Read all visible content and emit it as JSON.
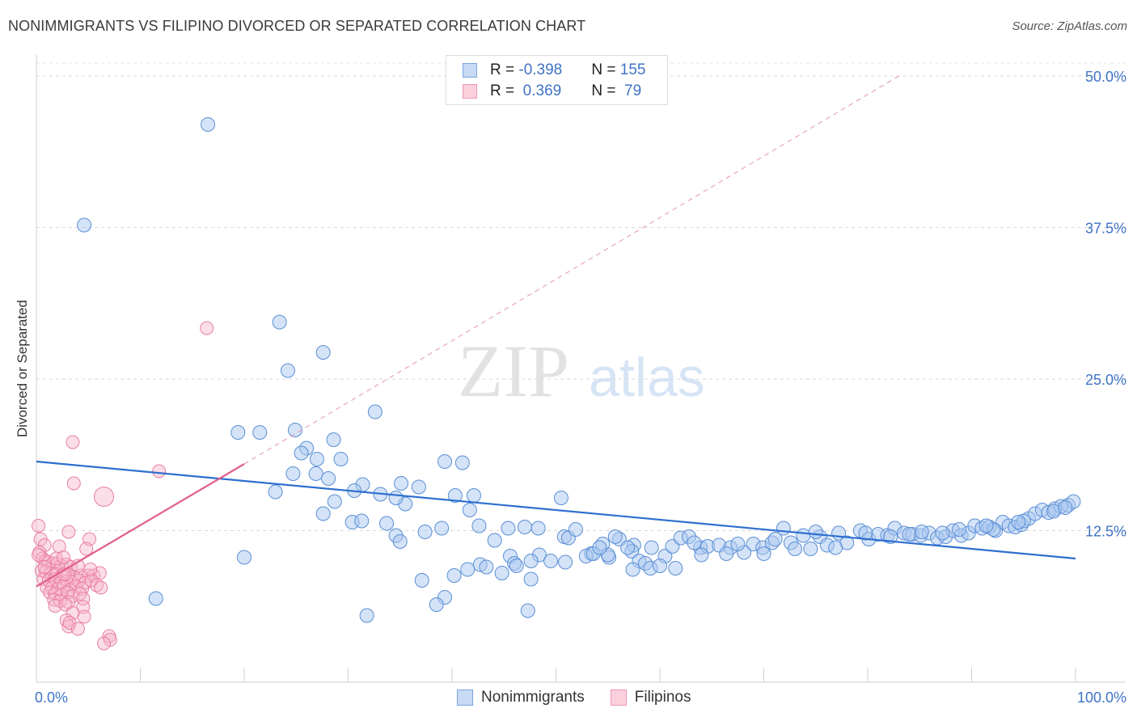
{
  "header": {
    "title": "NONIMMIGRANTS VS FILIPINO DIVORCED OR SEPARATED CORRELATION CHART",
    "source": "Source: ZipAtlas.com"
  },
  "watermark": {
    "zip": "ZIP",
    "atlas": "atlas"
  },
  "legend": {
    "rows": [
      {
        "r_label": "R = ",
        "r_value": "-0.398",
        "n_label": "N = ",
        "n_value": "155",
        "color": "#a9c8f0"
      },
      {
        "r_label": "R = ",
        "r_value": " 0.369",
        "n_label": "N = ",
        "n_value": " 79",
        "color": "#f7b6c9"
      }
    ]
  },
  "chart_data": {
    "type": "scatter",
    "title": "NONIMMIGRANTS VS FILIPINO DIVORCED OR SEPARATED CORRELATION CHART",
    "xlabel": "",
    "ylabel": "Divorced or Separated",
    "xlim": [
      0,
      100
    ],
    "ylim": [
      0,
      50
    ],
    "x_tick_labels": [
      "0.0%",
      "100.0%"
    ],
    "y_tick_labels": [
      "12.5%",
      "25.0%",
      "37.5%",
      "50.0%"
    ],
    "y_ticks": [
      12.5,
      25.0,
      37.5,
      50.0
    ],
    "grid": "horizontal dashed",
    "legend_position": "bottom-center",
    "series": [
      {
        "name": "Nonimmigrants",
        "color": "#a9c8f0",
        "stroke": "#5b8fd6",
        "trend": {
          "x": [
            0,
            100
          ],
          "y": [
            18.2,
            10.2
          ],
          "color": "#2e6fd0"
        },
        "points": [
          [
            16.5,
            46
          ],
          [
            4.6,
            37.7
          ],
          [
            23.4,
            29.7
          ],
          [
            27.6,
            27.2
          ],
          [
            24.2,
            25.7
          ],
          [
            32.6,
            22.3
          ],
          [
            19.4,
            20.6
          ],
          [
            21.5,
            20.6
          ],
          [
            24.9,
            20.8
          ],
          [
            28.6,
            20.0
          ],
          [
            26.0,
            19.3
          ],
          [
            25.5,
            18.9
          ],
          [
            27.0,
            18.4
          ],
          [
            29.3,
            18.4
          ],
          [
            39.3,
            18.2
          ],
          [
            41.0,
            18.1
          ],
          [
            26.9,
            17.2
          ],
          [
            24.7,
            17.2
          ],
          [
            28.1,
            16.8
          ],
          [
            31.4,
            16.3
          ],
          [
            35.1,
            16.4
          ],
          [
            23.0,
            15.7
          ],
          [
            30.6,
            15.8
          ],
          [
            33.1,
            15.5
          ],
          [
            36.8,
            16.1
          ],
          [
            40.3,
            15.4
          ],
          [
            42.1,
            15.4
          ],
          [
            35.5,
            14.7
          ],
          [
            34.6,
            15.2
          ],
          [
            28.7,
            14.9
          ],
          [
            50.5,
            15.2
          ],
          [
            41.7,
            14.2
          ],
          [
            27.6,
            13.9
          ],
          [
            30.4,
            13.2
          ],
          [
            31.3,
            13.3
          ],
          [
            33.7,
            13.1
          ],
          [
            39.0,
            12.7
          ],
          [
            45.4,
            12.7
          ],
          [
            47.0,
            12.8
          ],
          [
            42.6,
            12.9
          ],
          [
            34.6,
            12.1
          ],
          [
            37.4,
            12.4
          ],
          [
            35.0,
            11.6
          ],
          [
            44.1,
            11.7
          ],
          [
            50.8,
            12.0
          ],
          [
            51.2,
            11.9
          ],
          [
            54.5,
            11.4
          ],
          [
            56.1,
            11.8
          ],
          [
            57.5,
            11.3
          ],
          [
            59.2,
            11.1
          ],
          [
            45.6,
            10.4
          ],
          [
            48.4,
            10.5
          ],
          [
            53.4,
            10.6
          ],
          [
            55.1,
            10.3
          ],
          [
            57.3,
            10.8
          ],
          [
            60.5,
            10.4
          ],
          [
            61.2,
            11.2
          ],
          [
            62.0,
            11.9
          ],
          [
            62.8,
            12.0
          ],
          [
            63.9,
            11.1
          ],
          [
            64.6,
            11.2
          ],
          [
            65.7,
            11.3
          ],
          [
            66.8,
            11.1
          ],
          [
            68.1,
            10.7
          ],
          [
            69.0,
            11.4
          ],
          [
            69.9,
            11.1
          ],
          [
            70.8,
            11.5
          ],
          [
            71.9,
            12.7
          ],
          [
            72.6,
            11.5
          ],
          [
            73.8,
            12.1
          ],
          [
            74.5,
            11.0
          ],
          [
            75.4,
            12.0
          ],
          [
            76.1,
            11.3
          ],
          [
            77.2,
            12.3
          ],
          [
            78.0,
            11.5
          ],
          [
            79.3,
            12.5
          ],
          [
            80.1,
            11.8
          ],
          [
            81.0,
            12.2
          ],
          [
            81.9,
            12.1
          ],
          [
            82.6,
            12.7
          ],
          [
            83.5,
            12.3
          ],
          [
            84.3,
            12.2
          ],
          [
            85.1,
            12.1
          ],
          [
            85.9,
            12.3
          ],
          [
            86.7,
            11.9
          ],
          [
            87.5,
            12.0
          ],
          [
            88.2,
            12.5
          ],
          [
            89.0,
            12.1
          ],
          [
            89.7,
            12.3
          ],
          [
            90.3,
            12.9
          ],
          [
            91.0,
            12.7
          ],
          [
            91.7,
            12.8
          ],
          [
            92.3,
            12.5
          ],
          [
            93.0,
            13.2
          ],
          [
            93.6,
            12.9
          ],
          [
            94.2,
            12.8
          ],
          [
            94.8,
            13.0
          ],
          [
            95.5,
            13.5
          ],
          [
            96.1,
            13.9
          ],
          [
            96.8,
            14.2
          ],
          [
            97.4,
            14.0
          ],
          [
            98.0,
            14.3
          ],
          [
            98.6,
            14.5
          ],
          [
            99.3,
            14.6
          ],
          [
            99.8,
            14.9
          ],
          [
            20.0,
            10.3
          ],
          [
            46.0,
            9.8
          ],
          [
            42.7,
            9.7
          ],
          [
            43.3,
            9.5
          ],
          [
            41.5,
            9.3
          ],
          [
            46.2,
            9.6
          ],
          [
            47.6,
            10.0
          ],
          [
            49.5,
            10.0
          ],
          [
            50.9,
            9.9
          ],
          [
            52.9,
            10.4
          ],
          [
            53.6,
            10.6
          ],
          [
            55.0,
            10.5
          ],
          [
            58.0,
            10.0
          ],
          [
            58.6,
            9.8
          ],
          [
            59.1,
            9.4
          ],
          [
            60.0,
            9.6
          ],
          [
            61.5,
            9.4
          ],
          [
            44.8,
            9.0
          ],
          [
            47.6,
            8.5
          ],
          [
            40.2,
            8.8
          ],
          [
            37.1,
            8.4
          ],
          [
            39.3,
            7.0
          ],
          [
            31.8,
            5.5
          ],
          [
            38.5,
            6.4
          ],
          [
            47.3,
            5.9
          ],
          [
            11.5,
            6.9
          ],
          [
            57.4,
            9.3
          ],
          [
            54.2,
            11.1
          ],
          [
            56.9,
            11.1
          ],
          [
            64.0,
            10.5
          ],
          [
            66.4,
            10.6
          ],
          [
            70.0,
            10.6
          ],
          [
            73.0,
            11.0
          ],
          [
            76.9,
            11.1
          ],
          [
            82.2,
            12.0
          ],
          [
            85.2,
            12.4
          ],
          [
            88.8,
            12.6
          ],
          [
            92.1,
            12.6
          ],
          [
            95.0,
            13.3
          ],
          [
            97.9,
            14.1
          ],
          [
            99.0,
            14.4
          ],
          [
            48.3,
            12.7
          ],
          [
            51.9,
            12.6
          ],
          [
            55.7,
            12.0
          ],
          [
            63.3,
            11.5
          ],
          [
            67.5,
            11.4
          ],
          [
            71.1,
            11.8
          ],
          [
            75.0,
            12.4
          ],
          [
            79.8,
            12.3
          ],
          [
            84.0,
            12.2
          ],
          [
            87.2,
            12.3
          ],
          [
            91.4,
            12.9
          ],
          [
            94.5,
            13.2
          ]
        ]
      },
      {
        "name": "Filipinos",
        "color": "#f7b6c9",
        "stroke": "#e97fa2",
        "trend": {
          "x": [
            0,
            20
          ],
          "y": [
            7.9,
            18.0
          ],
          "color": "#e0608a",
          "extended_dashed_to": [
            83,
            50
          ]
        },
        "points": [
          [
            16.4,
            29.2
          ],
          [
            3.5,
            19.8
          ],
          [
            11.8,
            17.4
          ],
          [
            3.6,
            16.4
          ],
          [
            6.5,
            15.3
          ],
          [
            0.2,
            12.9
          ],
          [
            3.1,
            12.4
          ],
          [
            0.4,
            11.8
          ],
          [
            5.1,
            11.8
          ],
          [
            0.8,
            11.3
          ],
          [
            2.2,
            11.2
          ],
          [
            4.8,
            11.0
          ],
          [
            0.3,
            10.7
          ],
          [
            0.6,
            10.2
          ],
          [
            0.9,
            10.0
          ],
          [
            1.2,
            9.9
          ],
          [
            1.6,
            9.8
          ],
          [
            2.0,
            9.8
          ],
          [
            2.4,
            9.6
          ],
          [
            2.9,
            9.7
          ],
          [
            3.3,
            9.5
          ],
          [
            0.5,
            9.2
          ],
          [
            0.9,
            9.1
          ],
          [
            1.4,
            9.0
          ],
          [
            1.9,
            8.9
          ],
          [
            2.5,
            8.8
          ],
          [
            3.0,
            8.9
          ],
          [
            3.6,
            8.7
          ],
          [
            4.3,
            8.8
          ],
          [
            5.0,
            8.8
          ],
          [
            5.5,
            8.8
          ],
          [
            6.1,
            9.0
          ],
          [
            0.7,
            8.5
          ],
          [
            1.2,
            8.4
          ],
          [
            1.8,
            8.5
          ],
          [
            2.3,
            8.2
          ],
          [
            2.9,
            8.3
          ],
          [
            3.4,
            8.3
          ],
          [
            4.1,
            8.4
          ],
          [
            4.7,
            8.2
          ],
          [
            5.3,
            8.4
          ],
          [
            5.8,
            8.0
          ],
          [
            1.0,
            7.8
          ],
          [
            1.5,
            7.8
          ],
          [
            2.1,
            7.7
          ],
          [
            2.6,
            7.9
          ],
          [
            3.2,
            7.6
          ],
          [
            3.8,
            7.9
          ],
          [
            4.4,
            7.7
          ],
          [
            1.3,
            7.4
          ],
          [
            1.8,
            7.3
          ],
          [
            2.4,
            7.2
          ],
          [
            3.0,
            7.4
          ],
          [
            3.5,
            7.1
          ],
          [
            4.2,
            7.3
          ],
          [
            1.7,
            6.8
          ],
          [
            2.3,
            6.7
          ],
          [
            3.1,
            6.6
          ],
          [
            4.5,
            6.9
          ],
          [
            1.8,
            6.3
          ],
          [
            2.8,
            6.4
          ],
          [
            4.5,
            6.2
          ],
          [
            3.5,
            5.7
          ],
          [
            4.6,
            5.4
          ],
          [
            2.9,
            5.1
          ],
          [
            3.1,
            4.6
          ],
          [
            3.2,
            4.9
          ],
          [
            4.0,
            4.4
          ],
          [
            7.0,
            3.8
          ],
          [
            7.1,
            3.5
          ],
          [
            6.5,
            3.2
          ],
          [
            1.9,
            10.2
          ],
          [
            2.6,
            10.3
          ],
          [
            0.2,
            10.5
          ],
          [
            0.8,
            9.5
          ],
          [
            5.2,
            9.3
          ],
          [
            4.0,
            9.6
          ],
          [
            6.2,
            7.8
          ],
          [
            2.7,
            8.9
          ]
        ]
      }
    ]
  },
  "bottom_legend": [
    "Nonimmigrants",
    "Filipinos"
  ]
}
